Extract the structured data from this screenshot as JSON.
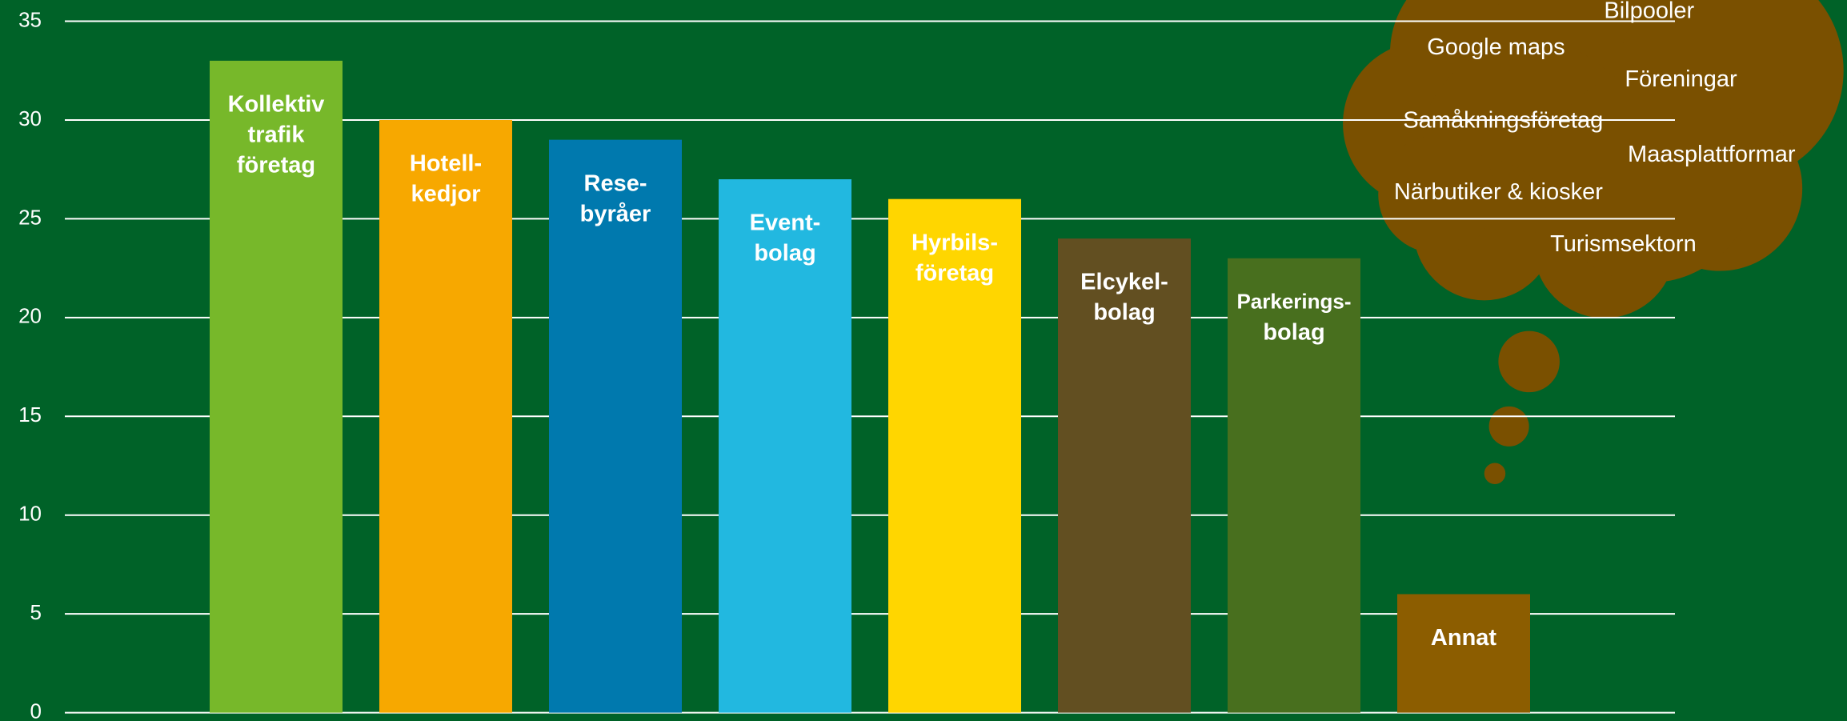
{
  "chart_data": {
    "type": "bar",
    "categories": [
      [
        "Kollektiv",
        "trafik",
        "företag"
      ],
      [
        "Hotell-",
        "kedjor"
      ],
      [
        "Rese-",
        "byråer"
      ],
      [
        "Event-",
        "bolag"
      ],
      [
        "Hyrbils-",
        "företag"
      ],
      [
        "Elcykel-",
        "bolag"
      ],
      [
        "Parkerings-",
        "bolag"
      ],
      [
        "Annat"
      ]
    ],
    "values": [
      33,
      30,
      29,
      27,
      26,
      24,
      23,
      6
    ],
    "colors": [
      "#77b82a",
      "#f7a800",
      "#0079ae",
      "#22b8e0",
      "#ffd600",
      "#624f21",
      "#486f1e",
      "#8c5d00"
    ],
    "ylim": [
      0,
      35
    ],
    "yticks": [
      0,
      5,
      10,
      15,
      20,
      25,
      30,
      35
    ],
    "grid": true,
    "annotations": [
      "Bilpooler",
      "Google maps",
      "Föreningar",
      "Samåkningsföretag",
      "Maasplattformar",
      "Närbutiker & kiosker",
      "Turismsektorn"
    ]
  }
}
